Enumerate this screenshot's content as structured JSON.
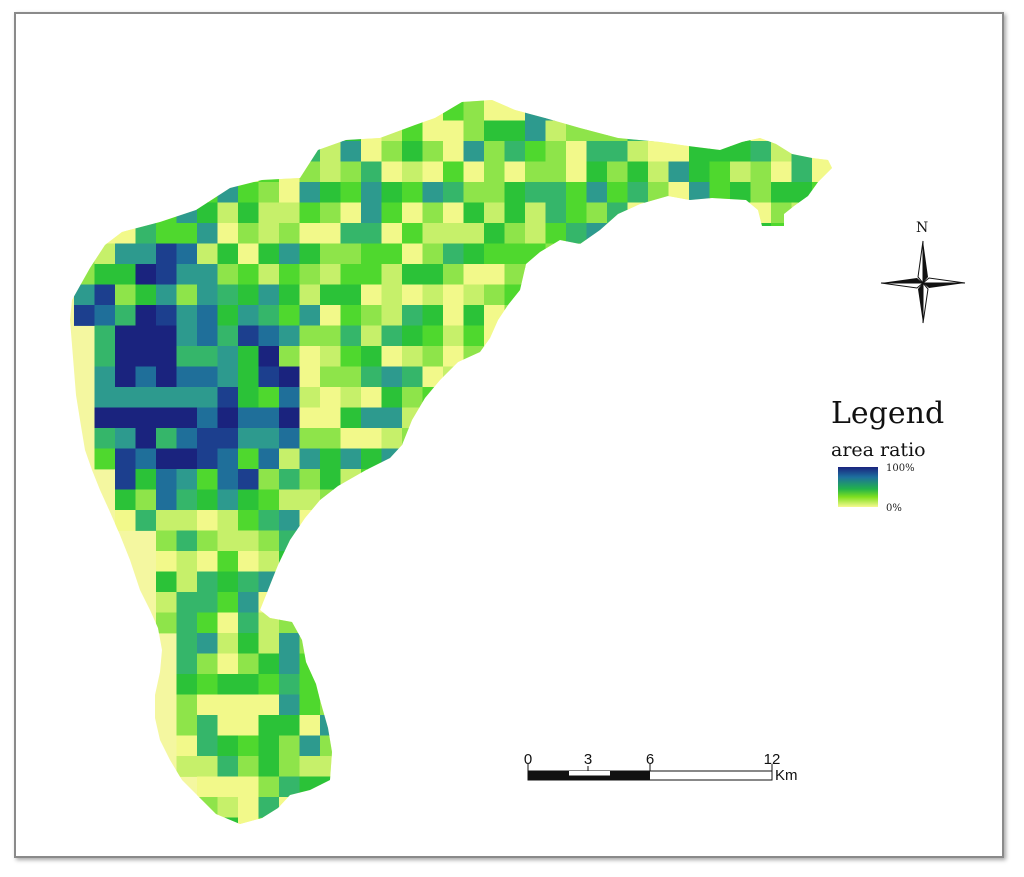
{
  "legend": {
    "title": "Legend",
    "subtitle": "area ratio",
    "max_label": "100%",
    "min_label": "0%",
    "ramp_colors": [
      "#1a237e",
      "#1d6f9e",
      "#22b34a",
      "#80e020",
      "#f6f990"
    ]
  },
  "north_arrow": {
    "label": "N",
    "icon": "north-arrow-icon"
  },
  "scale_bar": {
    "ticks": [
      "0",
      "3",
      "6",
      "12"
    ],
    "unit": "Km"
  },
  "map": {
    "boundary_fill": "#f4f7a0",
    "palette": [
      "#f2f98a",
      "#c6f06a",
      "#8ee44a",
      "#4fd82e",
      "#2bc238",
      "#35b66a",
      "#2d9a8e",
      "#1f6f9a",
      "#1c3f8e",
      "#1a237e"
    ]
  }
}
